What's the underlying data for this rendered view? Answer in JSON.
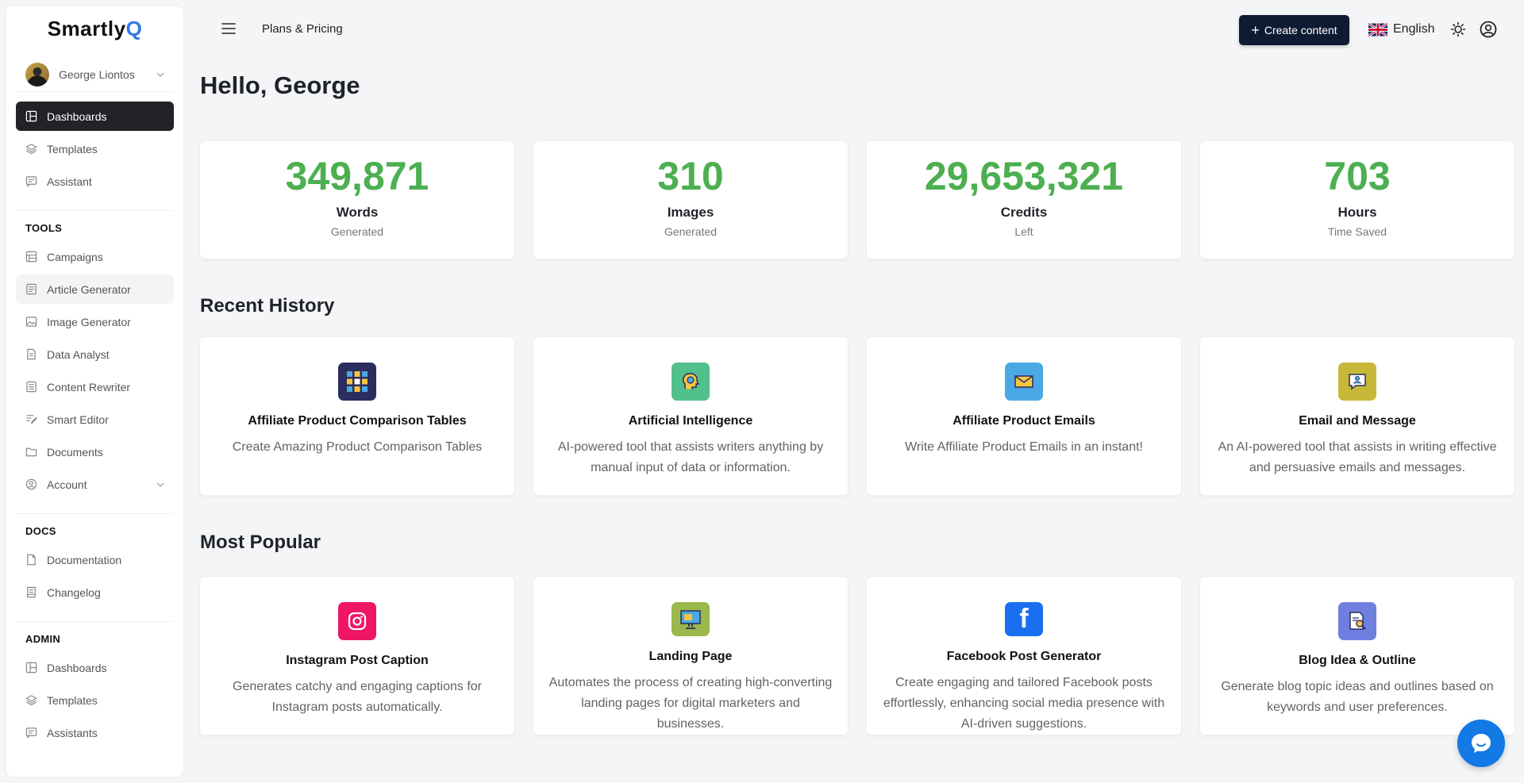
{
  "app": {
    "logo_main": "Smartly",
    "logo_accent": "Q"
  },
  "user": {
    "name": "George Liontos"
  },
  "sidebar": {
    "main_items": [
      {
        "label": "Dashboards",
        "icon": "layout-icon",
        "active": true
      },
      {
        "label": "Templates",
        "icon": "layers-icon"
      },
      {
        "label": "Assistant",
        "icon": "chat-icon"
      }
    ],
    "tools_title": "TOOLS",
    "tools_items": [
      {
        "label": "Campaigns",
        "icon": "grid-icon"
      },
      {
        "label": "Article Generator",
        "icon": "article-icon",
        "hover": true
      },
      {
        "label": "Image Generator",
        "icon": "image-icon"
      },
      {
        "label": "Data Analyst",
        "icon": "file-icon"
      },
      {
        "label": "Content Rewriter",
        "icon": "document-icon"
      },
      {
        "label": "Smart Editor",
        "icon": "edit-lines-icon"
      },
      {
        "label": "Documents",
        "icon": "folder-icon"
      },
      {
        "label": "Account",
        "icon": "user-circle-icon",
        "has_chevron": true
      }
    ],
    "docs_title": "DOCS",
    "docs_items": [
      {
        "label": "Documentation",
        "icon": "doc-icon"
      },
      {
        "label": "Changelog",
        "icon": "changelog-icon"
      }
    ],
    "admin_title": "ADMIN",
    "admin_items": [
      {
        "label": "Dashboards",
        "icon": "layout-icon"
      },
      {
        "label": "Templates",
        "icon": "layers-icon"
      },
      {
        "label": "Assistants",
        "icon": "chat-icon"
      }
    ]
  },
  "header": {
    "breadcrumb": "Plans & Pricing",
    "create_label": "Create content",
    "language": "English"
  },
  "main": {
    "greeting": "Hello, George",
    "stats": [
      {
        "value": "349,871",
        "label": "Words",
        "sub": "Generated"
      },
      {
        "value": "310",
        "label": "Images",
        "sub": "Generated"
      },
      {
        "value": "29,653,321",
        "label": "Credits",
        "sub": "Left"
      },
      {
        "value": "703",
        "label": "Hours",
        "sub": "Time Saved"
      }
    ],
    "recent_title": "Recent History",
    "recent": [
      {
        "title": "Affiliate Product Comparison Tables",
        "desc": "Create Amazing Product Comparison Tables",
        "icon": "comparison-grid-icon",
        "color": "#2b2d5e"
      },
      {
        "title": "Artificial Intelligence",
        "desc": "AI-powered tool that assists writers anything by manual input of data or information.",
        "icon": "ai-brain-icon",
        "color": "#52c08a"
      },
      {
        "title": "Affiliate Product Emails",
        "desc": "Write Affiliate Product Emails in an instant!",
        "icon": "envelope-icon",
        "color": "#4aa8e4"
      },
      {
        "title": "Email and Message",
        "desc": "An AI-powered tool that assists in writing effective and persuasive emails and messages.",
        "icon": "message-icon",
        "color": "#c8b83a"
      }
    ],
    "popular_title": "Most Popular",
    "popular": [
      {
        "title": "Instagram Post Caption",
        "desc": "Generates catchy and engaging captions for Instagram posts automatically.",
        "icon": "instagram-icon",
        "color": "#ef1666"
      },
      {
        "title": "Landing Page",
        "desc": "Automates the process of creating high-converting landing pages for digital marketers and businesses.",
        "icon": "monitor-icon",
        "color": "#9ab84c"
      },
      {
        "title": "Facebook Post Generator",
        "desc": "Create engaging and tailored Facebook posts effortlessly, enhancing social media presence with AI-driven suggestions.",
        "icon": "facebook-icon",
        "color": "#1a6ff0"
      },
      {
        "title": "Blog Idea & Outline",
        "desc": "Generate blog topic ideas and outlines based on keywords and user preferences.",
        "icon": "blog-search-icon",
        "color": "#6f7fe0"
      }
    ]
  }
}
